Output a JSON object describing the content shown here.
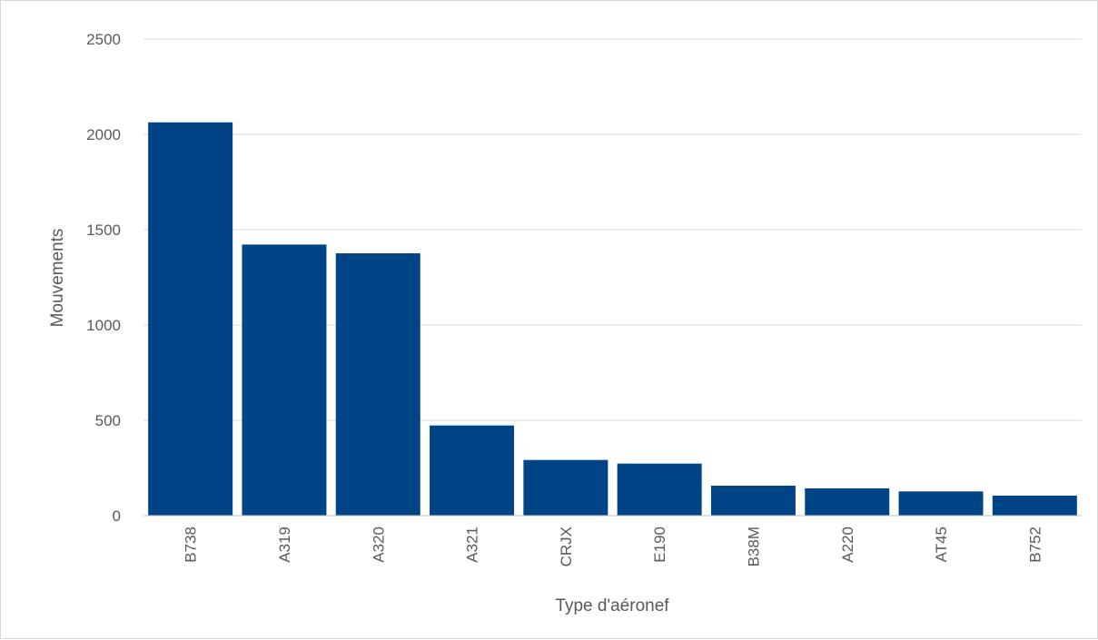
{
  "chart_data": {
    "type": "bar",
    "title": "",
    "xlabel": "Type d'aéronef",
    "ylabel": "Mouvements",
    "categories": [
      "B738",
      "A319",
      "A320",
      "A321",
      "CRJX",
      "E190",
      "B38M",
      "A220",
      "AT45",
      "B752"
    ],
    "series": [
      {
        "values": [
          2063,
          1422,
          1376,
          473,
          292,
          273,
          157,
          143,
          127,
          105
        ]
      }
    ],
    "ylim": [
      0,
      2500
    ],
    "yticks": [
      0,
      500,
      1000,
      1500,
      2000,
      2500
    ],
    "grid": true,
    "legend": "none",
    "colors": {
      "bar": "#004488",
      "grid": "#d9d9d9",
      "axis": "#bfbfbf",
      "text": "#595959"
    }
  }
}
